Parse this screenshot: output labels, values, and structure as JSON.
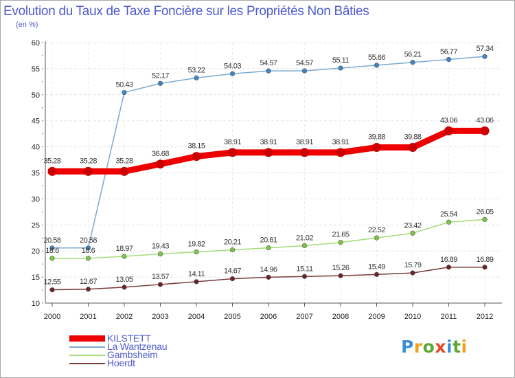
{
  "title": "Evolution du Taux de Taxe Foncière sur les Propriétés Non Bâties",
  "subtitle": "(en %)",
  "logo": {
    "text": "Proxiti",
    "letters": [
      {
        "ch": "P",
        "color": "#3a8fd6"
      },
      {
        "ch": "r",
        "color": "#f0a020"
      },
      {
        "ch": "o",
        "color": "#5aa832"
      },
      {
        "ch": "x",
        "color": "#e04a2a"
      },
      {
        "ch": "i",
        "color": "#3a8fd6"
      },
      {
        "ch": "t",
        "color": "#5aa832"
      },
      {
        "ch": "i",
        "color": "#f0a020"
      }
    ]
  },
  "chart_data": {
    "type": "line",
    "title": "Evolution du Taux de Taxe Foncière sur les Propriétés Non Bâties",
    "ylabel": "(en %)",
    "xlabel": "",
    "x": [
      "2000",
      "2001",
      "2002",
      "2003",
      "2004",
      "2005",
      "2006",
      "2007",
      "2008",
      "2009",
      "2010",
      "2011",
      "2012"
    ],
    "ylim": [
      10,
      60
    ],
    "yticks": [
      10,
      15,
      20,
      25,
      30,
      35,
      40,
      45,
      50,
      55,
      60
    ],
    "grid": true,
    "legend": "bottom-left",
    "series": [
      {
        "name": "KILSTETT",
        "color": "#ee0000",
        "marker": "#cc0000",
        "thick": true,
        "values": [
          35.28,
          35.28,
          35.28,
          36.68,
          38.15,
          38.91,
          38.91,
          38.91,
          38.91,
          39.88,
          39.88,
          43.06,
          43.06
        ],
        "labels": [
          "35.28",
          "35.28",
          "35.28",
          "36.68",
          "38.15",
          "38.91",
          "38.91",
          "38.91",
          "38.91",
          "39.88",
          "39.88",
          "43.06",
          "43.06"
        ]
      },
      {
        "name": "La Wantzenau",
        "color": "#7aaad2",
        "marker": "#3f86c8",
        "thick": false,
        "values": [
          20.58,
          20.58,
          50.43,
          52.17,
          53.22,
          54.03,
          54.57,
          54.57,
          55.11,
          55.66,
          56.21,
          56.77,
          57.34
        ],
        "labels": [
          "20.58",
          "20.58",
          "50.43",
          "52.17",
          "53.22",
          "54.03",
          "54.57",
          "54.57",
          "55.11",
          "55.66",
          "56.21",
          "56.77",
          "57.34"
        ]
      },
      {
        "name": "Gambsheim",
        "color": "#a6dc7a",
        "marker": "#7ac943",
        "thick": false,
        "values": [
          18.6,
          18.6,
          18.97,
          19.43,
          19.82,
          20.21,
          20.61,
          21.02,
          21.65,
          22.52,
          23.42,
          25.54,
          26.05
        ],
        "labels": [
          "18.6",
          "18.6",
          "18.97",
          "19.43",
          "19.82",
          "20.21",
          "20.61",
          "21.02",
          "21.65",
          "22.52",
          "23.42",
          "25.54",
          "26.05"
        ]
      },
      {
        "name": "Hoerdt",
        "color": "#7a3a3a",
        "marker": "#6a2424",
        "thick": false,
        "values": [
          12.55,
          12.67,
          13.05,
          13.57,
          14.11,
          14.67,
          14.96,
          15.11,
          15.26,
          15.49,
          15.79,
          16.89,
          16.89
        ],
        "labels": [
          "12.55",
          "12.67",
          "13.05",
          "13.57",
          "14.11",
          "14.67",
          "14.96",
          "15.11",
          "15.26",
          "15.49",
          "15.79",
          "16.89",
          "16.89"
        ]
      }
    ]
  }
}
